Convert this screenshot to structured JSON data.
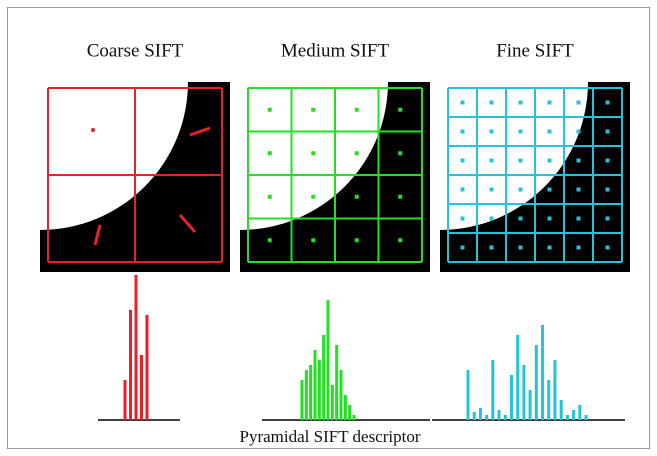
{
  "panels": [
    {
      "title": "Coarse SIFT",
      "histogram": [
        40,
        110,
        145,
        65,
        105
      ]
    },
    {
      "title": "Medium SIFT",
      "histogram": [
        40,
        50,
        55,
        70,
        60,
        85,
        120,
        35,
        75,
        50,
        25,
        15,
        5
      ]
    },
    {
      "title": "Fine SIFT",
      "histogram": [
        50,
        8,
        12,
        5,
        60,
        10,
        5,
        45,
        85,
        55,
        30,
        75,
        95,
        40,
        60,
        20,
        5,
        10,
        15,
        5
      ]
    }
  ],
  "caption": "Pyramidal SIFT descriptor"
}
